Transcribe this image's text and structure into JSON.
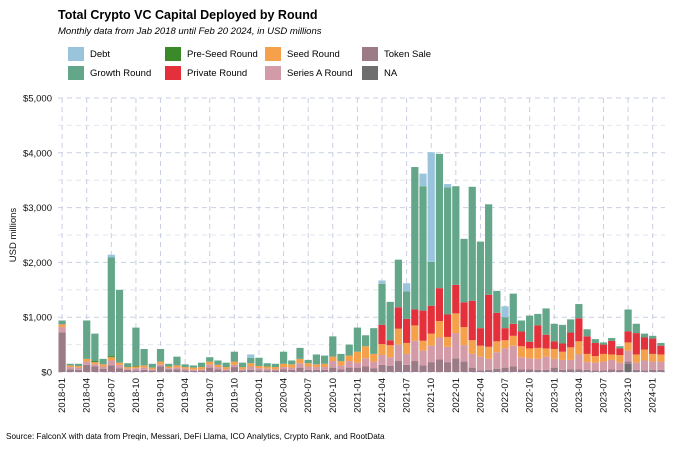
{
  "title": "Total Crypto VC Capital Deployed by Round",
  "subtitle": "Monthly data from Jab 2018 until Feb 20 2024, in USD millions",
  "caption": "Source: FalconX with data from Preqin, Messari, DeFi Llama, ICO Analytics, Crypto Rank, and RootData",
  "chart_data": {
    "type": "bar",
    "stacked": true,
    "title": "Total Crypto VC Capital Deployed by Round",
    "subtitle": "Monthly data from Jab 2018 until Feb 20 2024, in USD millions",
    "ylabel": "USD millions",
    "xlabel": "",
    "ylim": [
      0,
      5000
    ],
    "yticks": [
      0,
      1000,
      2000,
      3000,
      4000,
      5000
    ],
    "ytick_labels": [
      "$0",
      "$1,000",
      "$2,000",
      "$3,000",
      "$4,000",
      "$5,000"
    ],
    "xtick_labels": [
      "2018-01",
      "2018-04",
      "2018-07",
      "2018-10",
      "2019-01",
      "2019-04",
      "2019-07",
      "2019-10",
      "2020-01",
      "2020-04",
      "2020-07",
      "2020-10",
      "2021-01",
      "2021-04",
      "2021-07",
      "2021-10",
      "2022-01",
      "2022-04",
      "2022-07",
      "2022-10",
      "2023-01",
      "2023-04",
      "2023-07",
      "2023-10",
      "2024-01"
    ],
    "legend_position": "top-left",
    "grid": true,
    "categories": [
      "2018-01",
      "2018-02",
      "2018-03",
      "2018-04",
      "2018-05",
      "2018-06",
      "2018-07",
      "2018-08",
      "2018-09",
      "2018-10",
      "2018-11",
      "2018-12",
      "2019-01",
      "2019-02",
      "2019-03",
      "2019-04",
      "2019-05",
      "2019-06",
      "2019-07",
      "2019-08",
      "2019-09",
      "2019-10",
      "2019-11",
      "2019-12",
      "2020-01",
      "2020-02",
      "2020-03",
      "2020-04",
      "2020-05",
      "2020-06",
      "2020-07",
      "2020-08",
      "2020-09",
      "2020-10",
      "2020-11",
      "2020-12",
      "2021-01",
      "2021-02",
      "2021-03",
      "2021-04",
      "2021-05",
      "2021-06",
      "2021-07",
      "2021-08",
      "2021-09",
      "2021-10",
      "2021-11",
      "2021-12",
      "2022-01",
      "2022-02",
      "2022-03",
      "2022-04",
      "2022-05",
      "2022-06",
      "2022-07",
      "2022-08",
      "2022-09",
      "2022-10",
      "2022-11",
      "2022-12",
      "2023-01",
      "2023-02",
      "2023-03",
      "2023-04",
      "2023-05",
      "2023-06",
      "2023-07",
      "2023-08",
      "2023-09",
      "2023-10",
      "2023-11",
      "2023-12",
      "2024-01",
      "2024-02"
    ],
    "series": [
      {
        "name": "NA",
        "color": "#6e6e6e",
        "values": [
          0,
          0,
          0,
          0,
          0,
          0,
          0,
          0,
          0,
          0,
          0,
          0,
          0,
          0,
          0,
          0,
          0,
          0,
          0,
          0,
          0,
          0,
          0,
          0,
          0,
          0,
          0,
          0,
          0,
          0,
          0,
          0,
          0,
          0,
          0,
          0,
          0,
          0,
          0,
          0,
          0,
          0,
          0,
          0,
          0,
          0,
          0,
          0,
          0,
          0,
          0,
          0,
          0,
          0,
          0,
          0,
          0,
          0,
          0,
          0,
          0,
          0,
          0,
          0,
          0,
          0,
          0,
          0,
          0,
          150,
          0,
          0,
          0,
          0
        ]
      },
      {
        "name": "Token Sale",
        "color": "#9c7a86",
        "values": [
          720,
          50,
          40,
          130,
          100,
          60,
          120,
          70,
          40,
          30,
          40,
          30,
          100,
          50,
          50,
          30,
          20,
          30,
          80,
          50,
          30,
          90,
          30,
          40,
          30,
          30,
          30,
          50,
          40,
          80,
          40,
          40,
          40,
          80,
          50,
          80,
          80,
          100,
          70,
          130,
          110,
          200,
          130,
          200,
          120,
          180,
          230,
          180,
          250,
          190,
          80,
          30,
          40,
          60,
          80,
          100,
          50,
          50,
          40,
          40,
          80,
          40,
          50,
          50,
          40,
          30,
          30,
          50,
          40,
          40,
          40,
          30,
          40,
          40
        ]
      },
      {
        "name": "Series A Round",
        "color": "#d39aa8",
        "values": [
          100,
          40,
          40,
          60,
          40,
          40,
          90,
          60,
          20,
          40,
          40,
          20,
          40,
          20,
          30,
          30,
          20,
          20,
          60,
          40,
          20,
          40,
          20,
          60,
          40,
          30,
          20,
          40,
          40,
          80,
          60,
          50,
          50,
          120,
          70,
          120,
          90,
          150,
          120,
          180,
          160,
          300,
          200,
          370,
          270,
          300,
          400,
          280,
          460,
          300,
          250,
          250,
          200,
          300,
          350,
          380,
          220,
          200,
          200,
          240,
          160,
          180,
          170,
          270,
          140,
          140,
          160,
          170,
          130,
          200,
          130,
          180,
          150,
          150
        ]
      },
      {
        "name": "Seed Round",
        "color": "#f5a04a",
        "values": [
          50,
          30,
          30,
          50,
          40,
          40,
          60,
          40,
          30,
          30,
          40,
          30,
          50,
          30,
          40,
          30,
          40,
          40,
          50,
          40,
          40,
          60,
          40,
          60,
          40,
          40,
          40,
          60,
          60,
          80,
          60,
          50,
          60,
          80,
          80,
          100,
          200,
          220,
          140,
          200,
          220,
          290,
          200,
          280,
          180,
          220,
          300,
          180,
          360,
          330,
          250,
          200,
          220,
          200,
          150,
          180,
          200,
          180,
          200,
          150,
          180,
          150,
          230,
          240,
          150,
          120,
          140,
          100,
          140,
          150,
          150,
          200,
          140,
          130
        ]
      },
      {
        "name": "Private Round",
        "color": "#e3303a",
        "values": [
          0,
          0,
          0,
          0,
          0,
          0,
          0,
          0,
          0,
          0,
          0,
          0,
          0,
          0,
          0,
          0,
          0,
          0,
          0,
          0,
          0,
          0,
          0,
          0,
          0,
          0,
          0,
          0,
          0,
          0,
          0,
          0,
          0,
          0,
          0,
          0,
          0,
          0,
          0,
          350,
          90,
          390,
          440,
          290,
          550,
          510,
          600,
          410,
          520,
          450,
          720,
          320,
          950,
          520,
          220,
          220,
          270,
          120,
          410,
          250,
          140,
          150,
          270,
          420,
          320,
          240,
          170,
          250,
          120,
          200,
          390,
          220,
          280,
          160
        ]
      },
      {
        "name": "Pre-Seed Round",
        "color": "#3a8a2a",
        "values": [
          0,
          0,
          0,
          0,
          20,
          0,
          20,
          0,
          0,
          10,
          0,
          0,
          0,
          0,
          0,
          0,
          0,
          0,
          0,
          0,
          0,
          0,
          0,
          0,
          0,
          0,
          0,
          0,
          0,
          0,
          0,
          0,
          0,
          0,
          0,
          0,
          0,
          0,
          0,
          0,
          0,
          0,
          0,
          0,
          0,
          0,
          0,
          0,
          0,
          0,
          0,
          0,
          0,
          0,
          0,
          0,
          0,
          0,
          0,
          0,
          0,
          0,
          0,
          0,
          0,
          0,
          0,
          0,
          0,
          0,
          0,
          0,
          0,
          0
        ]
      },
      {
        "name": "Growth Round",
        "color": "#63a68a",
        "values": [
          70,
          30,
          40,
          700,
          500,
          100,
          1800,
          1330,
          70,
          700,
          300,
          70,
          230,
          50,
          160,
          50,
          40,
          80,
          80,
          80,
          80,
          180,
          80,
          100,
          150,
          60,
          60,
          220,
          70,
          200,
          60,
          180,
          150,
          370,
          130,
          200,
          440,
          200,
          470,
          750,
          700,
          870,
          500,
          2600,
          2270,
          800,
          2450,
          2320,
          1800,
          1160,
          2080,
          1580,
          1650,
          400,
          200,
          550,
          200,
          480,
          210,
          480,
          320,
          340,
          240,
          260,
          130,
          70,
          40,
          50,
          40,
          400,
          170,
          70,
          50,
          50
        ]
      },
      {
        "name": "Debt",
        "color": "#9ac4dc",
        "values": [
          0,
          0,
          0,
          0,
          0,
          0,
          50,
          0,
          0,
          0,
          0,
          0,
          0,
          0,
          0,
          0,
          0,
          0,
          0,
          0,
          0,
          0,
          0,
          60,
          0,
          0,
          0,
          0,
          0,
          0,
          0,
          0,
          0,
          0,
          0,
          0,
          0,
          0,
          0,
          60,
          0,
          0,
          150,
          0,
          230,
          2000,
          0,
          60,
          0,
          0,
          0,
          0,
          0,
          0,
          200,
          0,
          0,
          0,
          0,
          0,
          0,
          0,
          0,
          0,
          0,
          0,
          0,
          0,
          0,
          0,
          0,
          0,
          0,
          0
        ]
      }
    ]
  },
  "legend_order": [
    "Debt",
    "Pre-Seed Round",
    "Seed Round",
    "Token Sale",
    "Growth Round",
    "Private Round",
    "Series A Round",
    "NA"
  ]
}
